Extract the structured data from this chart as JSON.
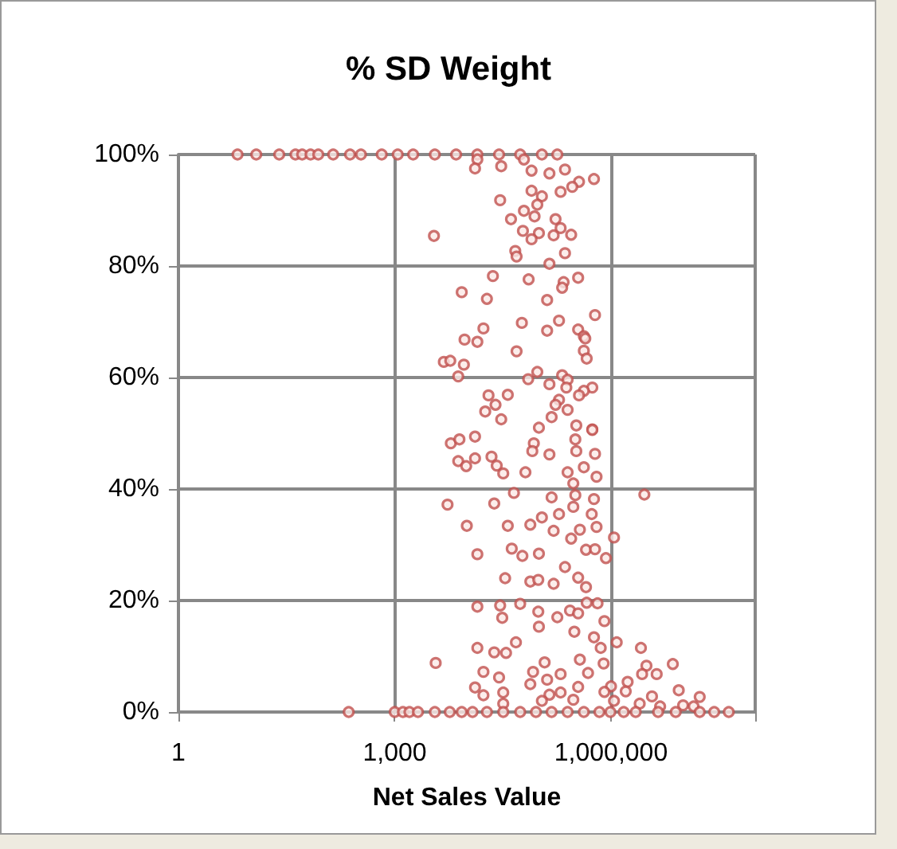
{
  "chart_data": {
    "type": "scatter",
    "title": "% SD Weight",
    "xlabel": "Net Sales Value",
    "log": "x",
    "grid": true,
    "marker": "circle",
    "xlim": [
      1,
      100000000
    ],
    "xticks": [
      1,
      {
        "value": 1000,
        "label": "1,000"
      },
      {
        "value": 1000000,
        "label": "1,000,000"
      },
      {
        "value": 100000000,
        "label": null
      }
    ],
    "ylim": [
      0,
      100
    ],
    "yticks": [
      {
        "value": 0,
        "label": "0%"
      },
      {
        "value": 20,
        "label": "20%"
      },
      {
        "value": 40,
        "label": "40%"
      },
      {
        "value": 60,
        "label": "60%"
      },
      {
        "value": 80,
        "label": "80%"
      },
      {
        "value": 100,
        "label": "100%"
      }
    ],
    "series": [
      {
        "color": "#c0504d",
        "x": [
          6.6,
          12,
          25,
          42,
          52,
          68,
          87,
          140,
          240,
          340,
          660,
          1100,
          1800,
          3600,
          7100,
          14000,
          28000,
          55000,
          110000,
          180000,
          14000,
          62000,
          13000,
          30000,
          79000,
          140000,
          230000,
          580000,
          360000,
          290000,
          200000,
          79000,
          110000,
          95000,
          29000,
          62000,
          87000,
          41000,
          170000,
          200000,
          60000,
          100000,
          160000,
          280000,
          3500,
          79000,
          47000,
          230000,
          49000,
          140000,
          23000,
          72000,
          220000,
          350000,
          210000,
          8500,
          19000,
          130000,
          600000,
          58000,
          190000,
          17000,
          130000,
          350000,
          9300,
          14000,
          420000,
          440000,
          49000,
          420000,
          460000,
          4800,
          5900,
          9100,
          7600,
          71000,
          95000,
          210000,
          250000,
          140000,
          550000,
          420000,
          360000,
          240000,
          20000,
          37000,
          25000,
          18000,
          190000,
          170000,
          250000,
          30000,
          150000,
          100000,
          330000,
          550000,
          6000,
          7900,
          13000,
          85000,
          320000,
          550000,
          7600,
          9800,
          13000,
          22000,
          26000,
          32000,
          65000,
          140000,
          81000,
          330000,
          600000,
          250000,
          420000,
          630000,
          300000,
          2900000,
          5400,
          24000,
          45000,
          150000,
          320000,
          580000,
          300000,
          110000,
          190000,
          540000,
          10000,
          37000,
          76000,
          160000,
          370000,
          630000,
          1100000,
          280000,
          450000,
          600000,
          14000,
          42000,
          59000,
          100000,
          850000,
          230000,
          34000,
          76000,
          98000,
          160000,
          350000,
          450000,
          55000,
          14000,
          29000,
          98000,
          31000,
          100000,
          180000,
          270000,
          460000,
          650000,
          350000,
          310000,
          810000,
          580000,
          720000,
          1200000,
          48000,
          14000,
          24000,
          35000,
          3700,
          370000,
          790000,
          2600000,
          3100000,
          7200000,
          4300000,
          17000,
          28000,
          83000,
          120000,
          200000,
          480000,
          1700000,
          2700000,
          13000,
          32000,
          76000,
          130000,
          350000,
          1000000,
          8700000,
          17000000,
          17000,
          140000,
          200000,
          1600000,
          3700000,
          810000,
          2500000,
          4800000,
          10000000,
          14000000,
          110000,
          300000,
          32000,
          1100000,
          230,
          1000,
          1300,
          1600,
          2100,
          3600,
          5800,
          8500,
          12000,
          19000,
          32000,
          55000,
          91000,
          150000,
          250000,
          420000,
          690000,
          980000,
          1500000,
          2200000,
          4500000,
          7900000,
          17000000,
          27000000,
          43000000
        ],
        "values": [
          100,
          100,
          100,
          100,
          100,
          100,
          100,
          100,
          100,
          100,
          100,
          100,
          100,
          100,
          100,
          100,
          100,
          100,
          100,
          100,
          99.1,
          99.1,
          97.5,
          97.9,
          97.1,
          96.6,
          97.3,
          95.6,
          95.1,
          94.2,
          93.3,
          93.5,
          92.5,
          91.0,
          91.8,
          89.9,
          88.9,
          88.4,
          88.4,
          86.8,
          86.3,
          85.9,
          85.5,
          85.6,
          85.4,
          84.8,
          82.7,
          82.3,
          81.7,
          80.4,
          78.2,
          77.6,
          77.1,
          77.9,
          76.1,
          75.3,
          74.1,
          73.9,
          71.2,
          69.8,
          70.2,
          68.8,
          68.4,
          68.6,
          66.8,
          66.4,
          67.4,
          67.0,
          64.7,
          64.8,
          63.4,
          62.8,
          63.0,
          62.3,
          60.2,
          59.7,
          61.0,
          60.4,
          59.6,
          58.8,
          58.2,
          57.6,
          56.8,
          58.2,
          56.8,
          56.9,
          55.1,
          53.9,
          56.0,
          55.1,
          54.2,
          52.5,
          52.9,
          51.0,
          51.4,
          50.7,
          48.2,
          48.9,
          49.4,
          48.2,
          48.9,
          50.6,
          45.0,
          44.1,
          45.5,
          45.8,
          44.2,
          42.8,
          43.0,
          46.2,
          46.8,
          46.8,
          46.3,
          43.0,
          43.9,
          42.2,
          41.0,
          39.0,
          37.2,
          37.4,
          39.3,
          38.5,
          38.9,
          38.2,
          36.8,
          34.9,
          35.5,
          35.5,
          33.4,
          33.4,
          33.6,
          32.5,
          32.7,
          33.2,
          31.3,
          31.1,
          29.1,
          29.2,
          28.3,
          29.3,
          28.0,
          28.4,
          27.6,
          26.0,
          24.0,
          23.4,
          23.7,
          23.0,
          24.1,
          22.4,
          19.4,
          18.9,
          19.1,
          18.0,
          16.9,
          15.3,
          17.0,
          18.2,
          19.6,
          19.5,
          17.7,
          14.4,
          16.3,
          13.4,
          11.5,
          12.5,
          12.5,
          11.5,
          10.7,
          10.6,
          8.8,
          9.4,
          8.7,
          11.5,
          8.3,
          8.6,
          6.8,
          7.2,
          6.2,
          7.2,
          8.9,
          6.8,
          7.0,
          5.4,
          6.8,
          4.4,
          3.5,
          5.0,
          5.8,
          4.5,
          4.6,
          3.9,
          2.7,
          3.0,
          3.1,
          3.5,
          3.7,
          2.8,
          3.6,
          1.5,
          1.0,
          1.2,
          1.0,
          2.0,
          2.2,
          1.5,
          2.0,
          0,
          0,
          0,
          0,
          0,
          0,
          0,
          0,
          0,
          0,
          0,
          0,
          0,
          0,
          0,
          0,
          0,
          0,
          0,
          0,
          0,
          0,
          0,
          0,
          0
        ]
      }
    ]
  }
}
